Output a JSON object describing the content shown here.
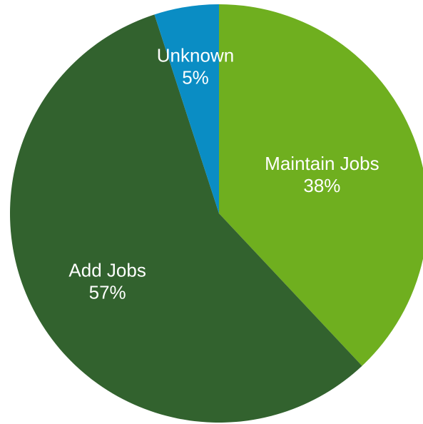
{
  "chart_data": {
    "type": "pie",
    "title": "",
    "slices": [
      {
        "category": "Maintain Jobs",
        "value": 38,
        "value_label": "38%",
        "color": "#6FAF1F"
      },
      {
        "category": "Add Jobs",
        "value": 57,
        "value_label": "57%",
        "color": "#32622E"
      },
      {
        "category": "Unknown",
        "value": 5,
        "value_label": "5%",
        "color": "#0A8DC4"
      }
    ],
    "labels_inside": true,
    "legend": "none",
    "start": "12 o'clock",
    "direction": "clockwise"
  }
}
